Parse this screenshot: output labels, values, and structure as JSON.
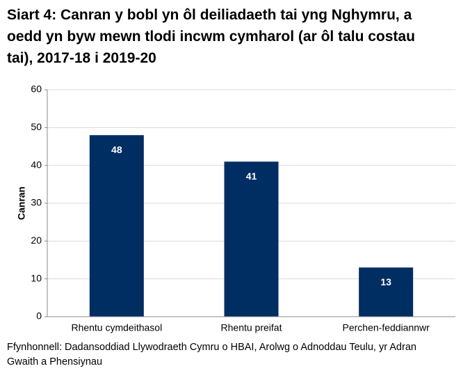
{
  "chart_data": {
    "type": "bar",
    "title": "Siart 4: Canran y bobl yn ôl deiliadaeth tai yng Nghymru, a oedd yn byw mewn tlodi incwm cymharol (ar ôl talu costau tai), 2017-18 i 2019-20",
    "y_label": "Canran",
    "categories": [
      "Rhentu cymdeithasol",
      "Rhentu preifat",
      "Perchen-feddiannwr"
    ],
    "values": [
      48,
      41,
      13
    ],
    "color": "#002d62",
    "ylim": [
      0,
      60
    ],
    "yticks": [
      0,
      10,
      20,
      30,
      40,
      50,
      60
    ],
    "grid": true,
    "source": "Ffynhonnell: Dadansoddiad Llywodraeth Cymru o HBAI, Arolwg o Adnoddau Teulu, yr Adran Gwaith a Phensiynau"
  }
}
